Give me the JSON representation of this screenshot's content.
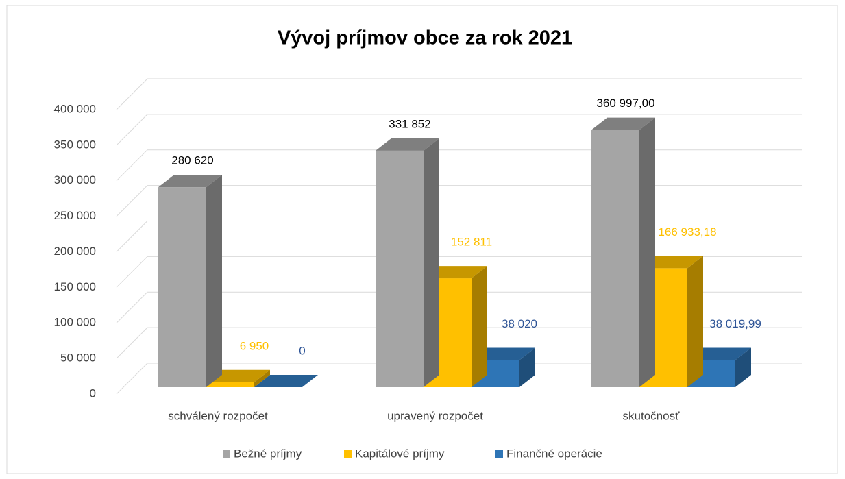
{
  "chart_data": {
    "type": "bar3d",
    "title": "Vývoj príjmov obce za rok 2021",
    "categories": [
      "schválený rozpočet",
      "upravený rozpočet",
      "skutočnosť"
    ],
    "series": [
      {
        "name": "Bežné príjmy",
        "color": "#a5a5a5",
        "values": [
          280620,
          331852,
          360997
        ],
        "value_labels": [
          "280 620",
          "331 852",
          "360 997,00"
        ]
      },
      {
        "name": "Kapitálové príjmy",
        "color": "#ffc000",
        "values": [
          6950,
          152811,
          166933.18
        ],
        "value_labels": [
          "6 950",
          "152 811",
          "166 933,18"
        ]
      },
      {
        "name": "Finančné operácie",
        "color": "#2e75b6",
        "values": [
          0,
          38020,
          38019.99
        ],
        "value_labels": [
          "0",
          "38 020",
          "38 019,99"
        ]
      }
    ],
    "ylim": [
      0,
      400000
    ],
    "yticks": [
      0,
      {
        "value": 50000,
        "label": "50 000"
      },
      {
        "value": 100000,
        "label": "100 000"
      },
      {
        "value": 150000,
        "label": "150 000"
      },
      {
        "value": 200000,
        "label": "200 000"
      },
      {
        "value": 250000,
        "label": "250 000"
      },
      {
        "value": 300000,
        "label": "300 000"
      },
      {
        "value": 350000,
        "label": "350 000"
      },
      {
        "value": 400000,
        "label": "400 000"
      }
    ],
    "grid": true,
    "legend": "bottom"
  }
}
